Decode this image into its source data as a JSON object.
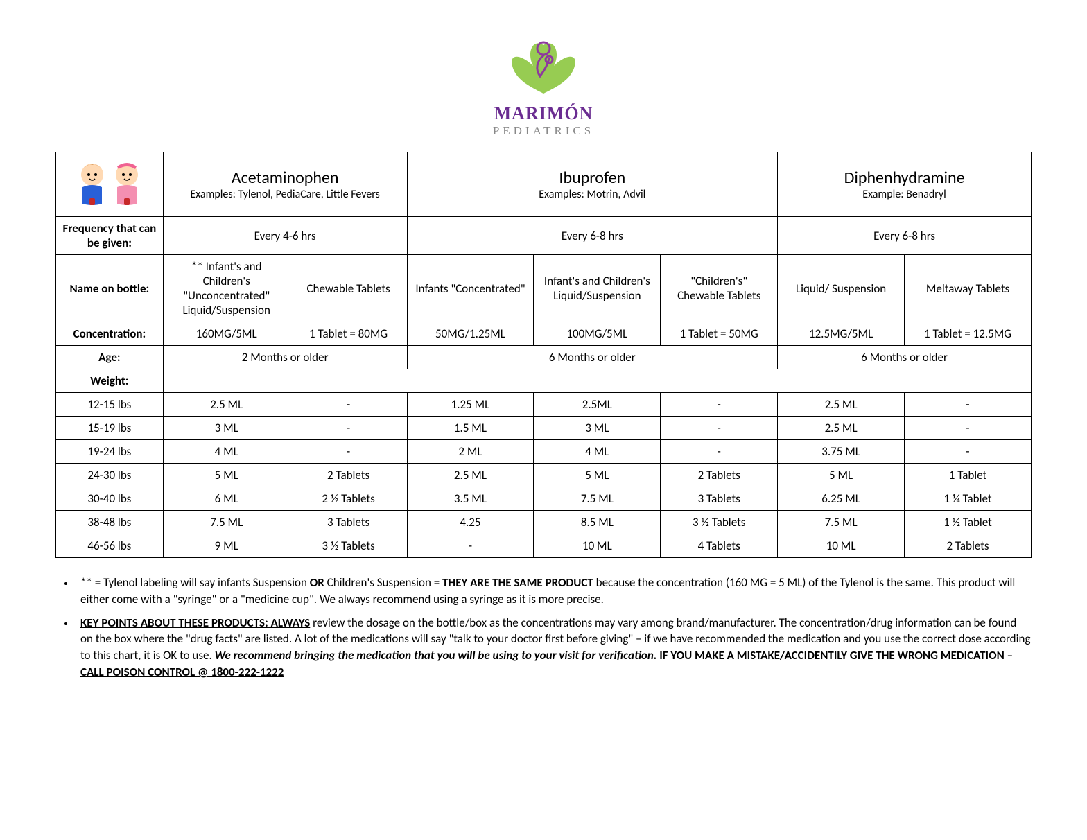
{
  "logo": {
    "main": "MARIMÓN",
    "sub": "PEDIATRICS",
    "leaf_color": "#8cc63f",
    "figure_color": "#8e3a9d"
  },
  "header_row": {
    "meds": [
      {
        "title": "Acetaminophen",
        "sub": "Examples: Tylenol, PediaCare, Little Fevers"
      },
      {
        "title": "Ibuprofen",
        "sub": "Examples: Motrin, Advil"
      },
      {
        "title": "Diphenhydramine",
        "sub": "Example: Benadryl"
      }
    ]
  },
  "labels": {
    "frequency": "Frequency that can be given:",
    "name_on_bottle": "Name on bottle:",
    "concentration": "Concentration:",
    "age": "Age:",
    "weight": "Weight:"
  },
  "frequency": [
    "Every 4-6 hrs",
    "Every 6-8 hrs",
    "Every 6-8 hrs"
  ],
  "name_on_bottle": [
    "** Infant's and Children's \"Unconcentrated\" Liquid/Suspension",
    "Chewable Tablets",
    "Infants \"Concentrated\"",
    "Infant's and Children's Liquid/Suspension",
    "\"Children's\" Chewable Tablets",
    "Liquid/ Suspension",
    "Meltaway Tablets"
  ],
  "concentration": [
    "160MG/5ML",
    "1 Tablet = 80MG",
    "50MG/1.25ML",
    "100MG/5ML",
    "1 Tablet = 50MG",
    "12.5MG/5ML",
    "1 Tablet = 12.5MG"
  ],
  "age": [
    "2 Months or older",
    "6 Months or older",
    "6 Months or older"
  ],
  "weight_rows": [
    {
      "w": "12-15 lbs",
      "v": [
        "2.5 ML",
        "-",
        "1.25 ML",
        "2.5ML",
        "-",
        "2.5 ML",
        "-"
      ]
    },
    {
      "w": "15-19 lbs",
      "v": [
        "3 ML",
        "-",
        "1.5 ML",
        "3 ML",
        "-",
        "2.5 ML",
        "-"
      ]
    },
    {
      "w": "19-24 lbs",
      "v": [
        "4 ML",
        "-",
        "2 ML",
        "4 ML",
        "-",
        "3.75 ML",
        "-"
      ]
    },
    {
      "w": "24-30 lbs",
      "v": [
        "5 ML",
        "2 Tablets",
        "2.5 ML",
        "5 ML",
        "2 Tablets",
        "5 ML",
        "1 Tablet"
      ]
    },
    {
      "w": "30-40 lbs",
      "v": [
        "6 ML",
        "2 ½ Tablets",
        "3.5 ML",
        "7.5 ML",
        "3 Tablets",
        "6.25 ML",
        "1 ¼ Tablet"
      ]
    },
    {
      "w": "38-48 lbs",
      "v": [
        "7.5 ML",
        "3 Tablets",
        "4.25",
        "8.5 ML",
        "3 ½ Tablets",
        "7.5 ML",
        "1 ½ Tablet"
      ]
    },
    {
      "w": "46-56 lbs",
      "v": [
        "9 ML",
        "3 ½ Tablets",
        "-",
        "10 ML",
        "4 Tablets",
        "10 ML",
        "2 Tablets"
      ]
    }
  ],
  "notes": {
    "n1a": "** = Tylenol labeling will say infants Suspension ",
    "n1b": "OR",
    "n1c": " Children's Suspension = ",
    "n1d": "THEY ARE THE SAME PRODUCT",
    "n1e": " because the concentration (160 MG = 5 ML) of the Tylenol is the same. This product will either come with a \"syringe\" or a \"medicine cup\". We always recommend using a syringe as it is more precise.",
    "n2a": "KEY POINTS ABOUT THESE PRODUCTS:  ALWAYS",
    "n2b": " review the dosage on the bottle/box as the concentrations may vary among brand/manufacturer. The concentration/drug information can be found on the box where the \"drug facts\" are listed. A lot of the medications will say \"talk to your doctor first before giving\" – if we have recommended the medication and you use the correct dose according to this chart, it is OK to use. ",
    "n2c": "We recommend bringing the medication that you will be using to your visit for verification. ",
    "n2d": "IF YOU MAKE A MISTAKE/ACCIDENTILY GIVE THE WRONG MEDICATION – CALL POISON CONTROL @ 1800-222-1222"
  },
  "baby_colors": {
    "boy": "#2860d8",
    "girl": "#f48fb1",
    "skin": "#ffd9b3",
    "hair": "#d99a5b"
  }
}
